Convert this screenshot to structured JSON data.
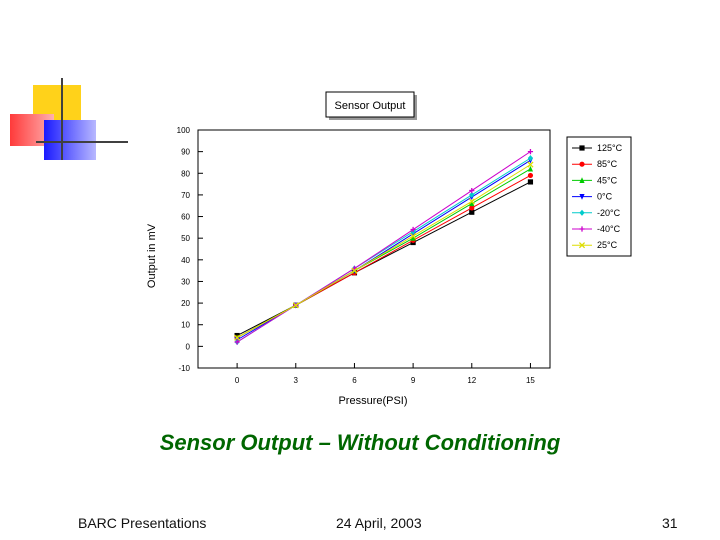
{
  "slide": {
    "title": "Sensor Output – Without Conditioning",
    "footer_left": "BARC Presentations",
    "footer_center": "24 April, 2003",
    "page_number": "31"
  },
  "decor_colors": {
    "yellow": "#ffd21a",
    "red": "#ff4d4d",
    "blue": "#1a1aff",
    "line": "#404040"
  },
  "chart_data": {
    "type": "line",
    "title": "Sensor Output",
    "xlabel": "Pressure(PSI)",
    "ylabel": "Output in mV",
    "xlim": [
      -2,
      16
    ],
    "ylim": [
      -10,
      100
    ],
    "xticks": [
      0,
      3,
      6,
      9,
      12,
      15
    ],
    "yticks": [
      -10,
      0,
      10,
      20,
      30,
      40,
      50,
      60,
      70,
      80,
      90,
      100
    ],
    "grid": false,
    "legend_position": "top-right",
    "x": [
      0,
      3,
      6,
      9,
      12,
      15
    ],
    "series": [
      {
        "name": "125°C",
        "color": "#000000",
        "marker": "square",
        "values": [
          5,
          19,
          34,
          48,
          62,
          76
        ]
      },
      {
        "name": "85°C",
        "color": "#ff0000",
        "marker": "circle",
        "values": [
          4,
          19,
          34,
          49,
          64,
          79
        ]
      },
      {
        "name": "45°C",
        "color": "#00cc00",
        "marker": "triangle-up",
        "values": [
          4,
          19,
          35,
          50,
          66,
          82
        ]
      },
      {
        "name": "0°C",
        "color": "#0000ff",
        "marker": "triangle-down",
        "values": [
          3,
          19,
          35,
          52,
          69,
          86
        ]
      },
      {
        "name": "-20°C",
        "color": "#00cccc",
        "marker": "diamond",
        "values": [
          2,
          19,
          36,
          53,
          70,
          87
        ]
      },
      {
        "name": "-40°C",
        "color": "#cc00cc",
        "marker": "plus",
        "values": [
          2,
          19,
          36,
          54,
          72,
          90
        ]
      },
      {
        "name": "25°C",
        "color": "#dddd00",
        "marker": "cross",
        "values": [
          4,
          19,
          35,
          51,
          67,
          84
        ]
      }
    ]
  }
}
